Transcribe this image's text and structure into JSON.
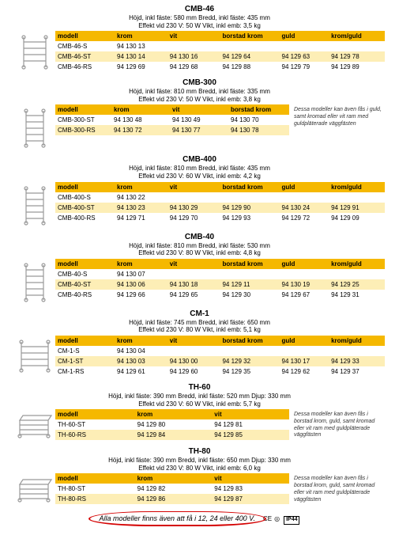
{
  "columns": {
    "modell": "modell",
    "krom": "krom",
    "vit": "vit",
    "borstad_krom": "borstad krom",
    "guld": "guld",
    "krom_guld": "krom/guld"
  },
  "sidenote_long": "Dessa modeller kan även fås i guld, samt kromad eller vit ram med guldpläterade väggfästen",
  "sidenote_th": "Dessa modeller kan även fås i borstad krom, guld, samt kromad eller vit ram med guldpläterade väggfästen",
  "sections": [
    {
      "title": "CMB-46",
      "spec1": "Höjd, inkl fäste: 580 mm    Bredd, inkl fäste: 435 mm",
      "spec2": "Effekt vid 230 V: 50 W       Vikt, inkl emb: 3,5 kg",
      "cols": [
        "modell",
        "krom",
        "vit",
        "borstad_krom",
        "guld",
        "krom_guld"
      ],
      "rows": [
        {
          "c": [
            "CMB-46-S",
            "94 130 13",
            "",
            "",
            "",
            ""
          ]
        },
        {
          "c": [
            "CMB-46-ST",
            "94 130 14",
            "94 130 16",
            "94 129 64",
            "94 129 63",
            "94 129 78"
          ],
          "alt": true
        },
        {
          "c": [
            "CMB-46-RS",
            "94 129 69",
            "94 129 68",
            "94 129 88",
            "94 129 79",
            "94 129 89"
          ]
        }
      ],
      "thumb": "rail"
    },
    {
      "title": "CMB-300",
      "spec1": "Höjd, inkl fäste: 810 mm    Bredd, inkl fäste: 335 mm",
      "spec2": "Effekt vid 230 V: 50 W       Vikt, inkl emb: 3,8 kg",
      "cols": [
        "modell",
        "krom",
        "vit",
        "borstad_krom"
      ],
      "rows": [
        {
          "c": [
            "CMB-300-ST",
            "94 130 48",
            "94 130 49",
            "94 130 70"
          ]
        },
        {
          "c": [
            "CMB-300-RS",
            "94 130 72",
            "94 130 77",
            "94 130 78"
          ],
          "alt": true
        }
      ],
      "note": "long",
      "thumb": "tall"
    },
    {
      "title": "CMB-400",
      "spec1": "Höjd, inkl fäste: 810 mm    Bredd, inkl fäste: 435 mm",
      "spec2": "Effekt vid 230 V: 60 W       Vikt, inkl emb: 4,2 kg",
      "cols": [
        "modell",
        "krom",
        "vit",
        "borstad_krom",
        "guld",
        "krom_guld"
      ],
      "rows": [
        {
          "c": [
            "CMB-400-S",
            "94 130 22",
            "",
            "",
            "",
            ""
          ]
        },
        {
          "c": [
            "CMB-400-ST",
            "94 130 23",
            "94 130 29",
            "94 129 90",
            "94 130 24",
            "94 129 91"
          ],
          "alt": true
        },
        {
          "c": [
            "CMB-400-RS",
            "94 129 71",
            "94 129 70",
            "94 129 93",
            "94 129 72",
            "94 129 09"
          ]
        }
      ],
      "thumb": "tall"
    },
    {
      "title": "CMB-40",
      "spec1": "Höjd, inkl fäste: 810 mm    Bredd, inkl fäste: 530 mm",
      "spec2": "Effekt vid 230 V: 80 W       Vikt, inkl emb: 4,8 kg",
      "cols": [
        "modell",
        "krom",
        "vit",
        "borstad_krom",
        "guld",
        "krom_guld"
      ],
      "rows": [
        {
          "c": [
            "CMB-40-S",
            "94 130 07",
            "",
            "",
            "",
            ""
          ]
        },
        {
          "c": [
            "CMB-40-ST",
            "94 130 06",
            "94 130 18",
            "94 129 11",
            "94 130 19",
            "94 129 25"
          ],
          "alt": true
        },
        {
          "c": [
            "CMB-40-RS",
            "94 129 66",
            "94 129 65",
            "94 129 30",
            "94 129 67",
            "94 129 31"
          ]
        }
      ],
      "thumb": "tall"
    },
    {
      "title": "CM-1",
      "spec1": "Höjd, inkl fäste: 745 mm    Bredd, inkl fäste: 650 mm",
      "spec2": "Effekt vid 230 V: 80 W       Vikt, inkl emb: 5,1 kg",
      "cols": [
        "modell",
        "krom",
        "vit",
        "borstad_krom",
        "guld",
        "krom_guld"
      ],
      "rows": [
        {
          "c": [
            "CM-1-S",
            "94 130 04",
            "",
            "",
            "",
            ""
          ]
        },
        {
          "c": [
            "CM-1-ST",
            "94 130 03",
            "94 130 00",
            "94 129 32",
            "94 130 17",
            "94 129 33"
          ],
          "alt": true
        },
        {
          "c": [
            "CM-1-RS",
            "94 129 61",
            "94 129 60",
            "94 129 35",
            "94 129 62",
            "94 129 37"
          ]
        }
      ],
      "thumb": "wide"
    },
    {
      "title": "TH-60",
      "spec1": "Höjd, inkl fäste: 390 mm   Bredd, inkl fäste: 520 mm  Djup: 330 mm",
      "spec2": "Effekt vid 230 V: 60 W      Vikt, inkl emb: 5,7 kg",
      "cols": [
        "modell",
        "krom",
        "vit"
      ],
      "rows": [
        {
          "c": [
            "TH-60-ST",
            "94 129 80",
            "94 129 81"
          ]
        },
        {
          "c": [
            "TH-60-RS",
            "94 129 84",
            "94 129 85"
          ],
          "alt": true
        }
      ],
      "note": "th",
      "thumb": "shelf"
    },
    {
      "title": "TH-80",
      "spec1": "Höjd, inkl fäste: 390 mm  Bredd, inkl fäste: 650 mm  Djup: 330 mm",
      "spec2": "Effekt vid 230 V: 80 W  Vikt, inkl emb: 6,0 kg",
      "cols": [
        "modell",
        "krom",
        "vit"
      ],
      "rows": [
        {
          "c": [
            "TH-80-ST",
            "94 129 82",
            "94 129 83"
          ]
        },
        {
          "c": [
            "TH-80-RS",
            "94 129 86",
            "94 129 87"
          ],
          "alt": true
        }
      ],
      "note": "th",
      "thumb": "shelf"
    }
  ],
  "footer_text": "Alla modeller finns även att få i 12, 24 eller 400 V.",
  "badges": {
    "ce": "CE",
    "double": "◎",
    "ip": "IP44"
  },
  "colors": {
    "header_bg": "#f5b800",
    "alt_bg": "#fdeeb6",
    "circle": "#d40000"
  }
}
